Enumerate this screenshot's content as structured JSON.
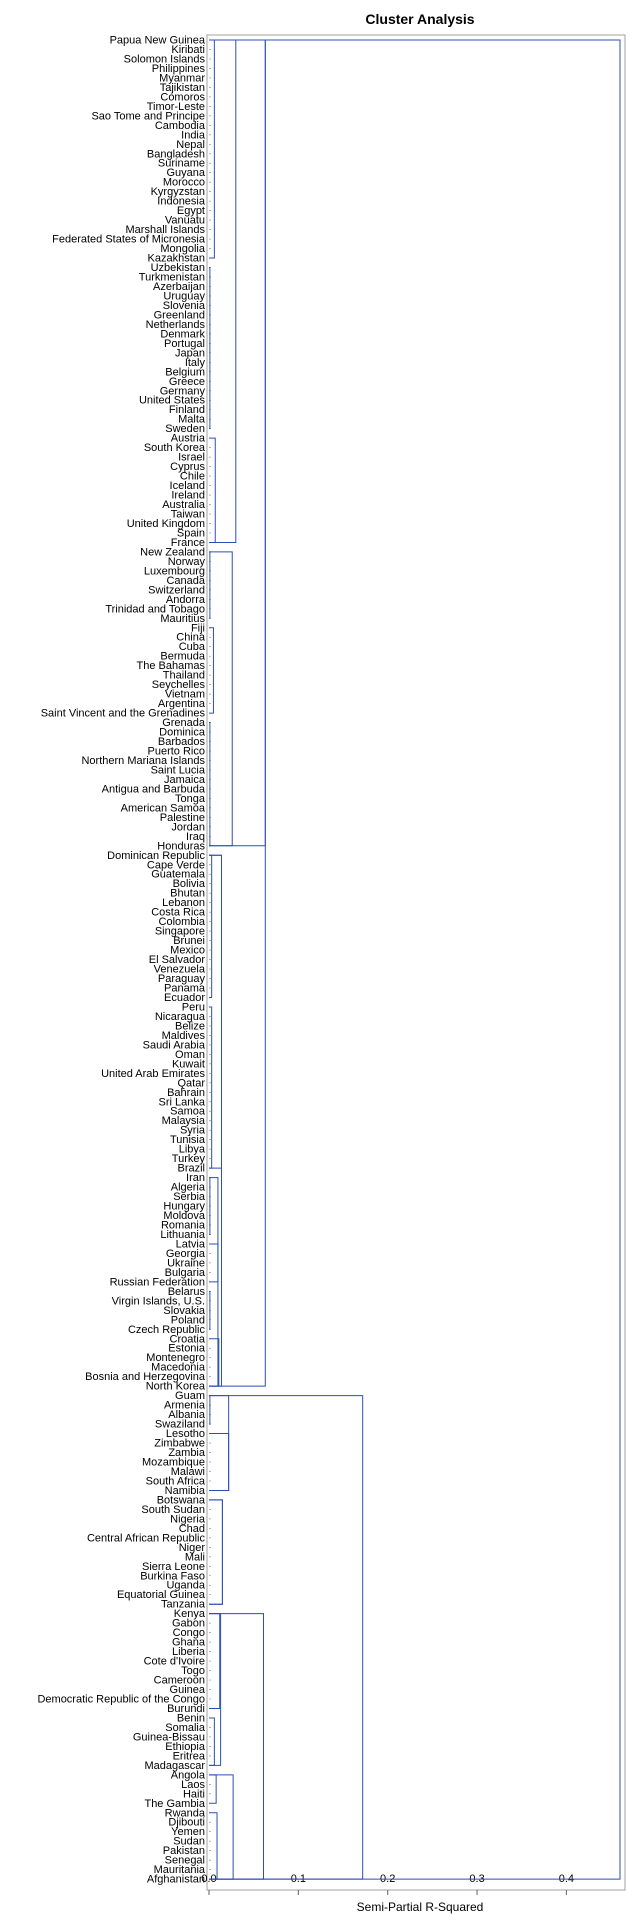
{
  "chart_data": {
    "type": "dendrogram",
    "title": "Cluster Analysis",
    "xlabel": "Semi-Partial R-Squared",
    "ylabel": "",
    "xlim": [
      0,
      0.46
    ],
    "xticks": [
      0,
      0.1,
      0.2,
      0.3,
      0.4
    ],
    "xtick_labels": [
      "0.0",
      "0.1",
      "0.2",
      "0.3",
      "0.4"
    ],
    "grid": false,
    "legend": "none",
    "line_color": "#2d4fb5",
    "leaves": [
      "Papua New Guinea",
      "Kiribati",
      "Solomon Islands",
      "Philippines",
      "Myanmar",
      "Tajikistan",
      "Comoros",
      "Timor-Leste",
      "Sao Tome and Principe",
      "Cambodia",
      "India",
      "Nepal",
      "Bangladesh",
      "Suriname",
      "Guyana",
      "Morocco",
      "Kyrgyzstan",
      "Indonesia",
      "Egypt",
      "Vanuatu",
      "Marshall Islands",
      "Federated States of Micronesia",
      "Mongolia",
      "Kazakhstan",
      "Uzbekistan",
      "Turkmenistan",
      "Azerbaijan",
      "Uruguay",
      "Slovenia",
      "Greenland",
      "Netherlands",
      "Denmark",
      "Portugal",
      "Japan",
      "Italy",
      "Belgium",
      "Greece",
      "Germany",
      "United States",
      "Finland",
      "Malta",
      "Sweden",
      "Austria",
      "South Korea",
      "Israel",
      "Cyprus",
      "Chile",
      "Iceland",
      "Ireland",
      "Australia",
      "Taiwan",
      "United Kingdom",
      "Spain",
      "France",
      "New Zealand",
      "Norway",
      "Luxembourg",
      "Canada",
      "Switzerland",
      "Andorra",
      "Trinidad and Tobago",
      "Mauritius",
      "Fiji",
      "China",
      "Cuba",
      "Bermuda",
      "The Bahamas",
      "Thailand",
      "Seychelles",
      "Vietnam",
      "Argentina",
      "Saint Vincent and the Grenadines",
      "Grenada",
      "Dominica",
      "Barbados",
      "Puerto Rico",
      "Northern Mariana Islands",
      "Saint Lucia",
      "Jamaica",
      "Antigua and Barbuda",
      "Tonga",
      "American Samoa",
      "Palestine",
      "Jordan",
      "Iraq",
      "Honduras",
      "Dominican Republic",
      "Cape Verde",
      "Guatemala",
      "Bolivia",
      "Bhutan",
      "Lebanon",
      "Costa Rica",
      "Colombia",
      "Singapore",
      "Brunei",
      "Mexico",
      "El Salvador",
      "Venezuela",
      "Paraguay",
      "Panama",
      "Ecuador",
      "Peru",
      "Nicaragua",
      "Belize",
      "Maldives",
      "Saudi Arabia",
      "Oman",
      "Kuwait",
      "United Arab Emirates",
      "Qatar",
      "Bahrain",
      "Sri Lanka",
      "Samoa",
      "Malaysia",
      "Syria",
      "Tunisia",
      "Libya",
      "Turkey",
      "Brazil",
      "Iran",
      "Algeria",
      "Serbia",
      "Hungary",
      "Moldova",
      "Romania",
      "Lithuania",
      "Latvia",
      "Georgia",
      "Ukraine",
      "Bulgaria",
      "Russian Federation",
      "Belarus",
      "Virgin Islands, U.S.",
      "Slovakia",
      "Poland",
      "Czech Republic",
      "Croatia",
      "Estonia",
      "Montenegro",
      "Macedonia",
      "Bosnia and Herzegovina",
      "North Korea",
      "Guam",
      "Armenia",
      "Albania",
      "Swaziland",
      "Lesotho",
      "Zimbabwe",
      "Zambia",
      "Mozambique",
      "Malawi",
      "South Africa",
      "Namibia",
      "Botswana",
      "South Sudan",
      "Nigeria",
      "Chad",
      "Central African Republic",
      "Niger",
      "Mali",
      "Sierra Leone",
      "Burkina Faso",
      "Uganda",
      "Equatorial Guinea",
      "Tanzania",
      "Kenya",
      "Gabon",
      "Congo",
      "Ghana",
      "Liberia",
      "Cote d'Ivoire",
      "Togo",
      "Cameroon",
      "Guinea",
      "Democratic Republic of the Congo",
      "Burundi",
      "Benin",
      "Somalia",
      "Guinea-Bissau",
      "Ethiopia",
      "Eritrea",
      "Madagascar",
      "Angola",
      "Laos",
      "Haiti",
      "The Gambia",
      "Rwanda",
      "Djibouti",
      "Yemen",
      "Sudan",
      "Pakistan",
      "Senegal",
      "Mauritania",
      "Afghanistan"
    ],
    "merges": [
      {
        "range": [
          0,
          23
        ],
        "height": 0.006
      },
      {
        "range": [
          24,
          41
        ],
        "height": 0.001
      },
      {
        "range": [
          42,
          53
        ],
        "height": 0.007
      },
      {
        "range": [
          54,
          61
        ],
        "height": 0.001
      },
      {
        "range": [
          62,
          71
        ],
        "height": 0.005
      },
      {
        "range": [
          72,
          85
        ],
        "height": 0.001
      },
      {
        "range": [
          86,
          101
        ],
        "height": 0.003
      },
      {
        "range": [
          102,
          119
        ],
        "height": 0.003
      },
      {
        "range": [
          120,
          126
        ],
        "height": 0.001
      },
      {
        "range": [
          127,
          131
        ],
        "height": 0.01
      },
      {
        "range": [
          132,
          136
        ],
        "height": 0.001
      },
      {
        "range": [
          137,
          142
        ],
        "height": 0.011
      },
      {
        "range": [
          143,
          146
        ],
        "height": 0.001
      },
      {
        "range": [
          147,
          153
        ],
        "height": 0.022
      },
      {
        "range": [
          154,
          165
        ],
        "height": 0.015
      },
      {
        "range": [
          166,
          176
        ],
        "height": 0.012
      },
      {
        "range": [
          177,
          182
        ],
        "height": 0.006
      },
      {
        "range": [
          183,
          186
        ],
        "height": 0.008
      },
      {
        "range": [
          187,
          194
        ],
        "height": 0.009
      },
      {
        "range": [
          0,
          53
        ],
        "height": 0.03
      },
      {
        "range": [
          54,
          85
        ],
        "height": 0.026
      },
      {
        "range": [
          86,
          119
        ],
        "height": 0.014
      },
      {
        "range": [
          120,
          142
        ],
        "height": 0.01
      },
      {
        "range": [
          143,
          153
        ],
        "height": 0.022
      },
      {
        "range": [
          154,
          165
        ],
        "height": 0.015
      },
      {
        "range": [
          166,
          182
        ],
        "height": 0.013
      },
      {
        "range": [
          183,
          194
        ],
        "height": 0.027
      },
      {
        "range": [
          0,
          85
        ],
        "height": 0.063
      },
      {
        "range": [
          86,
          142
        ],
        "height": 0.014
      },
      {
        "range": [
          0,
          142
        ],
        "height": 0.063
      },
      {
        "range": [
          166,
          194
        ],
        "height": 0.061
      },
      {
        "range": [
          143,
          194
        ],
        "height": 0.172
      },
      {
        "range": [
          0,
          194
        ],
        "height": 0.46
      }
    ]
  }
}
